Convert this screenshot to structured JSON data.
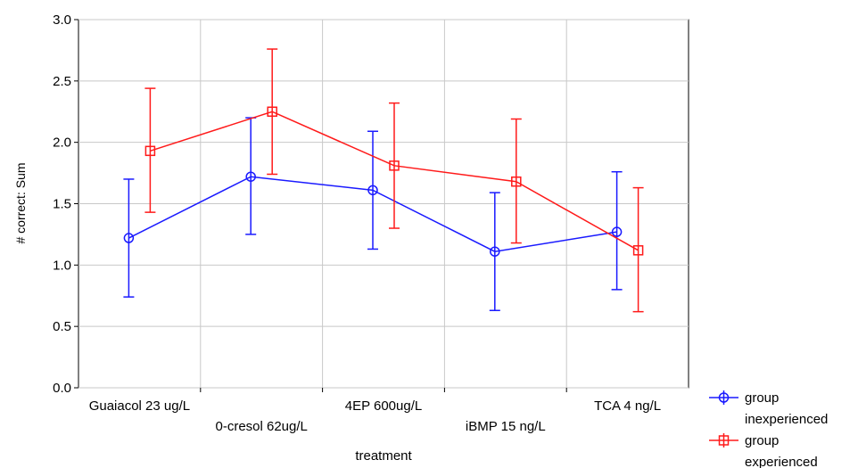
{
  "chart_data": {
    "type": "line",
    "title": "",
    "xlabel": "treatment",
    "ylabel": "# correct: Sum",
    "ylim": [
      0,
      3
    ],
    "yticks": [
      "0.0",
      "0.5",
      "1.0",
      "1.5",
      "2.0",
      "2.5",
      "3.0"
    ],
    "grid": true,
    "legend_position": "bottom-right, outside plot",
    "categories": [
      "Guaiacol 23  ug/L",
      "0-cresol 62ug/L",
      "4EP 600ug/L",
      "iBMP 15 ng/L",
      "TCA 4 ng/L"
    ],
    "series": [
      {
        "name": "group inexperienced",
        "legend_lines": [
          "group",
          "inexperienced"
        ],
        "color": "#1a1aff",
        "marker": "circle",
        "values": [
          1.22,
          1.72,
          1.61,
          1.11,
          1.27
        ],
        "err_low": [
          0.74,
          1.25,
          1.13,
          0.63,
          0.8
        ],
        "err_high": [
          1.7,
          2.2,
          2.09,
          1.59,
          1.76
        ]
      },
      {
        "name": "group experienced",
        "legend_lines": [
          "group",
          "experienced"
        ],
        "color": "#ff1a1a",
        "marker": "square",
        "values": [
          1.93,
          2.25,
          1.81,
          1.68,
          1.12
        ],
        "err_low": [
          1.43,
          1.74,
          1.3,
          1.18,
          0.62
        ],
        "err_high": [
          2.44,
          2.76,
          2.32,
          2.19,
          1.63
        ]
      }
    ]
  }
}
